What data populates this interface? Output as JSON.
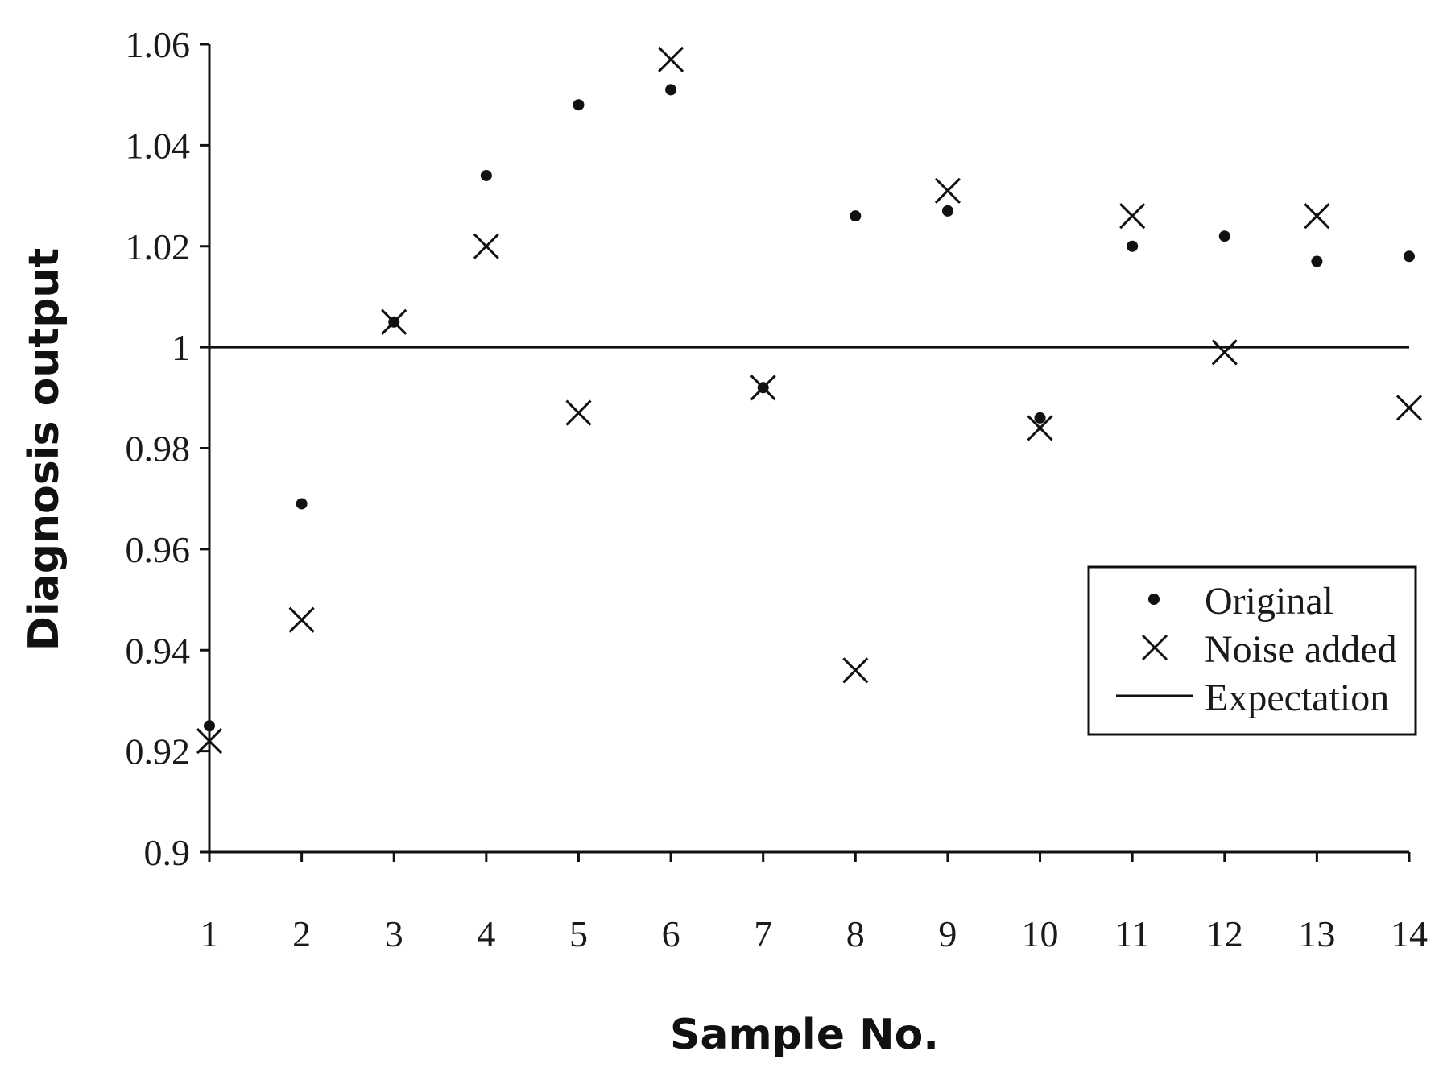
{
  "chart_data": {
    "type": "scatter",
    "title": "",
    "xlabel": "Sample No.",
    "ylabel": "Diagnosis output",
    "x": [
      1,
      2,
      3,
      4,
      5,
      6,
      7,
      8,
      9,
      10,
      11,
      12,
      13,
      14
    ],
    "x_ticks": [
      "1",
      "2",
      "3",
      "4",
      "5",
      "6",
      "7",
      "8",
      "9",
      "10",
      "11",
      "12",
      "13",
      "14"
    ],
    "xlim": [
      1,
      14
    ],
    "ylim": [
      0.9,
      1.06
    ],
    "y_ticks": [
      0.9,
      0.92,
      0.94,
      0.96,
      0.98,
      1,
      1.02,
      1.04,
      1.06
    ],
    "y_tick_labels": [
      "0.9",
      "0.92",
      "0.94",
      "0.96",
      "0.98",
      "1",
      "1.02",
      "1.04",
      "1.06"
    ],
    "grid": false,
    "legend_position": "right",
    "series": [
      {
        "name": "Original",
        "marker": "dot",
        "values": [
          0.925,
          0.969,
          1.005,
          1.034,
          1.048,
          1.051,
          0.992,
          1.026,
          1.027,
          0.986,
          1.02,
          1.022,
          1.017,
          1.018
        ]
      },
      {
        "name": "Noise added",
        "marker": "x",
        "values": [
          0.922,
          0.946,
          1.005,
          1.02,
          0.987,
          1.057,
          0.992,
          0.936,
          1.031,
          0.984,
          1.026,
          0.999,
          1.026,
          0.988
        ]
      },
      {
        "name": "Expectation",
        "marker": "line",
        "values": [
          1,
          1,
          1,
          1,
          1,
          1,
          1,
          1,
          1,
          1,
          1,
          1,
          1,
          1
        ]
      }
    ],
    "colors": {
      "ink": "#111111",
      "background": "#ffffff"
    }
  }
}
